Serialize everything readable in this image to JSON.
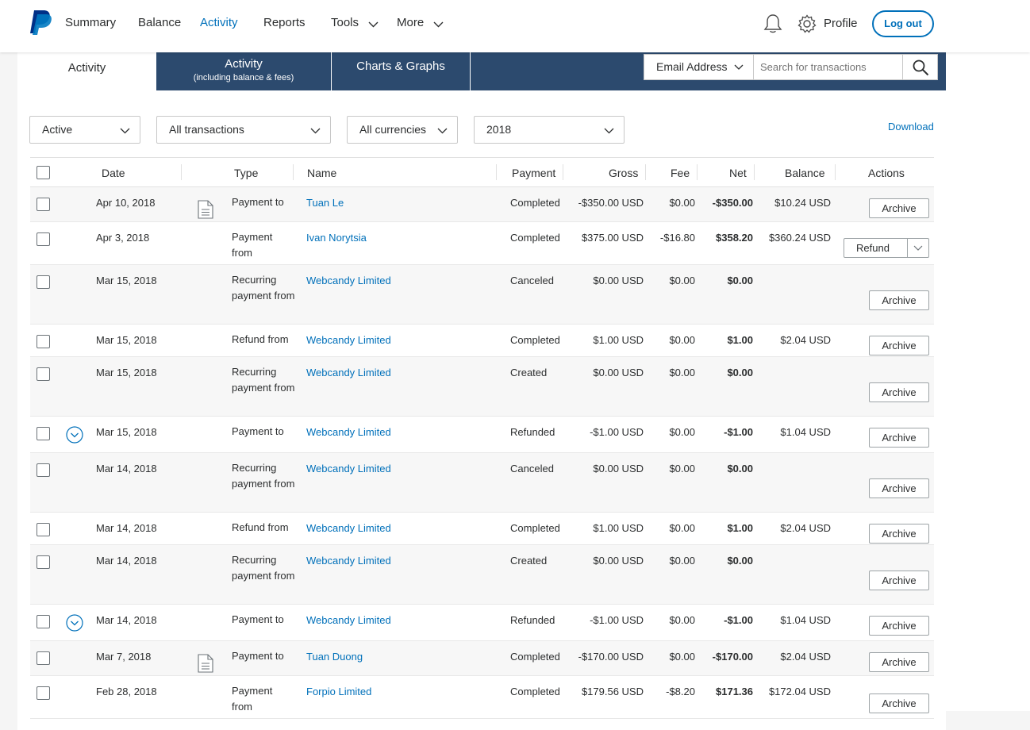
{
  "nav": {
    "items": [
      {
        "label": "Summary",
        "active": false
      },
      {
        "label": "Balance",
        "active": false
      },
      {
        "label": "Activity",
        "active": true
      },
      {
        "label": "Reports",
        "active": false
      },
      {
        "label": "Tools",
        "active": false
      },
      {
        "label": "More",
        "active": false
      }
    ],
    "profile_label": "Profile",
    "logout_label": "Log out",
    "accent_color": "#0070ba"
  },
  "tabs": {
    "activity": "Activity",
    "activity_fees": "Activity",
    "activity_fees_sub": "(including balance & fees)",
    "charts": "Charts & Graphs"
  },
  "search": {
    "field_selected": "Email Address",
    "placeholder": "Search for transactions"
  },
  "filters": {
    "status": "Active",
    "type": "All transactions",
    "currency": "All currencies",
    "year": "2018",
    "download_label": "Download"
  },
  "columns": {
    "date": "Date",
    "type": "Type",
    "name": "Name",
    "payment": "Payment",
    "gross": "Gross",
    "fee": "Fee",
    "net": "Net",
    "balance": "Balance",
    "actions": "Actions"
  },
  "rows": [
    {
      "date": "Apr 10, 2018",
      "type": "Payment to",
      "name": "Tuan Le",
      "payment": "Completed",
      "gross": "-$350.00 USD",
      "fee": "$0.00",
      "net": "-$350.00",
      "balance": "$10.24 USD",
      "action": "Archive",
      "doc": true,
      "expand": false
    },
    {
      "date": "Apr 3, 2018",
      "type": "Payment from",
      "name": "Ivan Norytsia",
      "payment": "Completed",
      "gross": "$375.00 USD",
      "fee": "-$16.80",
      "net": "$358.20",
      "balance": "$360.24 USD",
      "action": "Refund",
      "doc": false,
      "expand": false
    },
    {
      "date": "Mar 15, 2018",
      "type": "Recurring payment from",
      "name": "Webcandy Limited",
      "payment": "Canceled",
      "gross": "$0.00 USD",
      "fee": "$0.00",
      "net": "$0.00",
      "balance": "",
      "action": "Archive",
      "doc": false,
      "expand": false
    },
    {
      "date": "Mar 15, 2018",
      "type": "Refund from",
      "name": "Webcandy Limited",
      "payment": "Completed",
      "gross": "$1.00 USD",
      "fee": "$0.00",
      "net": "$1.00",
      "balance": "$2.04 USD",
      "action": "Archive",
      "doc": false,
      "expand": false
    },
    {
      "date": "Mar 15, 2018",
      "type": "Recurring payment from",
      "name": "Webcandy Limited",
      "payment": "Created",
      "gross": "$0.00 USD",
      "fee": "$0.00",
      "net": "$0.00",
      "balance": "",
      "action": "Archive",
      "doc": false,
      "expand": false
    },
    {
      "date": "Mar 15, 2018",
      "type": "Payment to",
      "name": "Webcandy Limited",
      "payment": "Refunded",
      "gross": "-$1.00 USD",
      "fee": "$0.00",
      "net": "-$1.00",
      "balance": "$1.04 USD",
      "action": "Archive",
      "doc": false,
      "expand": true
    },
    {
      "date": "Mar 14, 2018",
      "type": "Recurring payment from",
      "name": "Webcandy Limited",
      "payment": "Canceled",
      "gross": "$0.00 USD",
      "fee": "$0.00",
      "net": "$0.00",
      "balance": "",
      "action": "Archive",
      "doc": false,
      "expand": false
    },
    {
      "date": "Mar 14, 2018",
      "type": "Refund from",
      "name": "Webcandy Limited",
      "payment": "Completed",
      "gross": "$1.00 USD",
      "fee": "$0.00",
      "net": "$1.00",
      "balance": "$2.04 USD",
      "action": "Archive",
      "doc": false,
      "expand": false
    },
    {
      "date": "Mar 14, 2018",
      "type": "Recurring payment from",
      "name": "Webcandy Limited",
      "payment": "Created",
      "gross": "$0.00 USD",
      "fee": "$0.00",
      "net": "$0.00",
      "balance": "",
      "action": "Archive",
      "doc": false,
      "expand": false
    },
    {
      "date": "Mar 14, 2018",
      "type": "Payment to",
      "name": "Webcandy Limited",
      "payment": "Refunded",
      "gross": "-$1.00 USD",
      "fee": "$0.00",
      "net": "-$1.00",
      "balance": "$1.04 USD",
      "action": "Archive",
      "doc": false,
      "expand": true
    },
    {
      "date": "Mar 7, 2018",
      "type": "Payment to",
      "name": "Tuan Duong",
      "payment": "Completed",
      "gross": "-$170.00 USD",
      "fee": "$0.00",
      "net": "-$170.00",
      "balance": "$2.04 USD",
      "action": "Archive",
      "doc": true,
      "expand": false
    },
    {
      "date": "Feb 28, 2018",
      "type": "Payment from",
      "name": "Forpio Limited",
      "payment": "Completed",
      "gross": "$179.56 USD",
      "fee": "-$8.20",
      "net": "$171.36",
      "balance": "$172.04 USD",
      "action": "Archive",
      "doc": false,
      "expand": false
    }
  ]
}
